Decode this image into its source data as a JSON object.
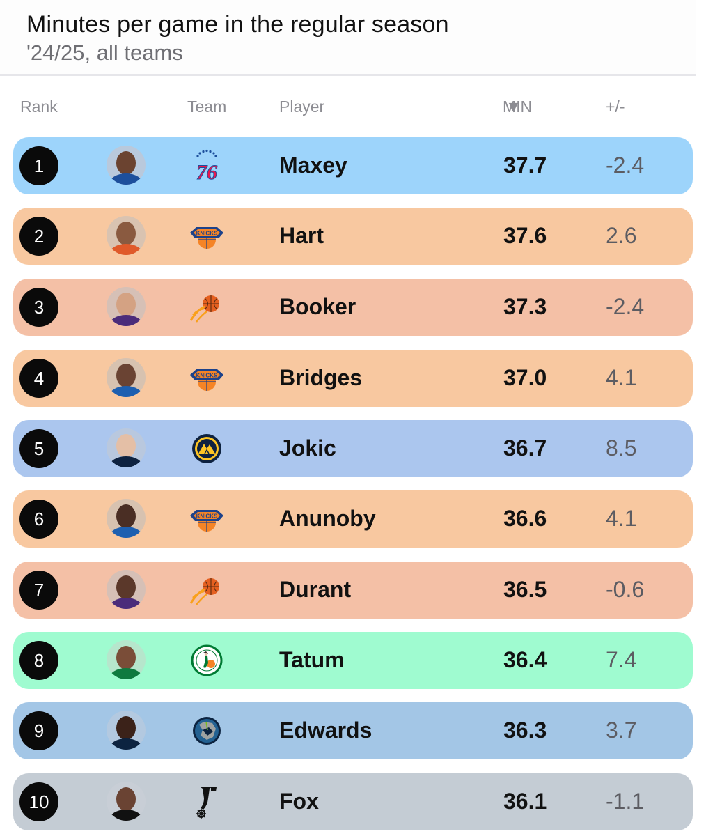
{
  "header": {
    "title": "Minutes per game in the regular season",
    "subtitle": "'24/25, all teams"
  },
  "columns": {
    "rank": "Rank",
    "team": "Team",
    "player": "Player",
    "min": "MIN",
    "min_sort_icon": "▼",
    "plus_minus": "+/-"
  },
  "rows": [
    {
      "rank": "1",
      "player": "Maxey",
      "team_logo": "76ers-logo-icon",
      "min": "37.7",
      "plus_minus": "-2.4",
      "color": "#9dd4fb"
    },
    {
      "rank": "2",
      "player": "Hart",
      "team_logo": "knicks-logo-icon",
      "min": "37.6",
      "plus_minus": "2.6",
      "color": "#f8c8a0"
    },
    {
      "rank": "3",
      "player": "Booker",
      "team_logo": "suns-logo-icon",
      "min": "37.3",
      "plus_minus": "-2.4",
      "color": "#f4c0a6"
    },
    {
      "rank": "4",
      "player": "Bridges",
      "team_logo": "knicks-logo-icon",
      "min": "37.0",
      "plus_minus": "4.1",
      "color": "#f8c8a0"
    },
    {
      "rank": "5",
      "player": "Jokic",
      "team_logo": "nuggets-logo-icon",
      "min": "36.7",
      "plus_minus": "8.5",
      "color": "#abc6ee"
    },
    {
      "rank": "6",
      "player": "Anunoby",
      "team_logo": "knicks-logo-icon",
      "min": "36.6",
      "plus_minus": "4.1",
      "color": "#f8c8a0"
    },
    {
      "rank": "7",
      "player": "Durant",
      "team_logo": "suns-logo-icon",
      "min": "36.5",
      "plus_minus": "-0.6",
      "color": "#f4c0a6"
    },
    {
      "rank": "8",
      "player": "Tatum",
      "team_logo": "celtics-logo-icon",
      "min": "36.4",
      "plus_minus": "7.4",
      "color": "#9ffbd0"
    },
    {
      "rank": "9",
      "player": "Edwards",
      "team_logo": "timberwolves-logo-icon",
      "min": "36.3",
      "plus_minus": "3.7",
      "color": "#a3c6e6"
    },
    {
      "rank": "10",
      "player": "Fox",
      "team_logo": "spurs-logo-icon",
      "min": "36.1",
      "plus_minus": "-1.1",
      "color": "#c4ccd4"
    }
  ],
  "avatars": [
    {
      "name": "player-photo-maxey",
      "skin": "#6b4330",
      "jersey": "#1d4f9c",
      "bg": "#b9c9dc"
    },
    {
      "name": "player-photo-hart",
      "skin": "#8a5a40",
      "jersey": "#e05a2a",
      "bg": "#d9c3b1"
    },
    {
      "name": "player-photo-booker",
      "skin": "#d4a283",
      "jersey": "#4b2c7a",
      "bg": "#d6c0b6"
    },
    {
      "name": "player-photo-bridges",
      "skin": "#6a4333",
      "jersey": "#1d5fb0",
      "bg": "#d7c2b0"
    },
    {
      "name": "player-photo-jokic",
      "skin": "#e4bfa6",
      "jersey": "#0e2240",
      "bg": "#b9c8de"
    },
    {
      "name": "player-photo-anunoby",
      "skin": "#4a2e24",
      "jersey": "#1d5fb0",
      "bg": "#d7c2b0"
    },
    {
      "name": "player-photo-durant",
      "skin": "#5b382a",
      "jersey": "#4b2c7a",
      "bg": "#d6c0b6"
    },
    {
      "name": "player-photo-tatum",
      "skin": "#7a4d38",
      "jersey": "#0e7a3f",
      "bg": "#b6e6cc"
    },
    {
      "name": "player-photo-edwards",
      "skin": "#3b2219",
      "jersey": "#0c2340",
      "bg": "#b3c9e0"
    },
    {
      "name": "player-photo-fox",
      "skin": "#6a4333",
      "jersey": "#111111",
      "bg": "#c8ced6"
    }
  ]
}
